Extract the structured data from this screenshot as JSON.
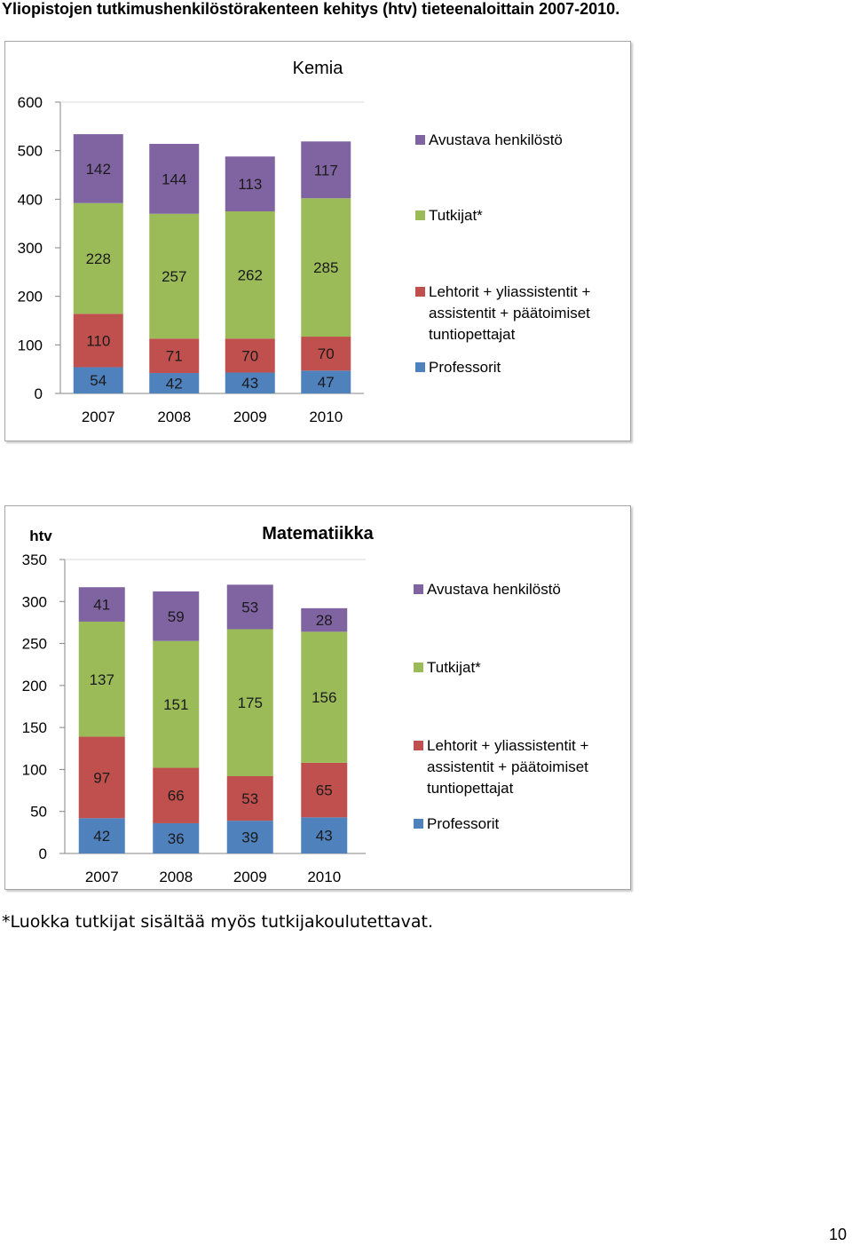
{
  "page": {
    "title": "Yliopistojen tutkimushenkilöstörakenteen kehitys (htv) tieteenaloittain 2007-2010.",
    "footnote": "*Luokka tutkijat sisältää myös tutkijakoulutettavat.",
    "page_number": "10"
  },
  "series_colors": {
    "Professorit": "#4f81bd",
    "Lehtorit + yliassistentit + assistentit + päätoimiset tuntiopettajat": "#c0504d",
    "Tutkijat*": "#9bbb59",
    "Avustava henkilöstö": "#8064a2"
  },
  "chart_data": [
    {
      "type": "bar",
      "stacked": true,
      "title": "Kemia",
      "ylabel": "",
      "xlabel": "",
      "ylim": [
        0,
        600
      ],
      "yticks": [
        0,
        100,
        200,
        300,
        400,
        500,
        600
      ],
      "categories": [
        "2007",
        "2008",
        "2009",
        "2010"
      ],
      "series": [
        {
          "name": "Professorit",
          "values": [
            54,
            42,
            43,
            47
          ]
        },
        {
          "name": "Lehtorit + yliassistentit + assistentit + päätoimiset tuntiopettajat",
          "values": [
            110,
            71,
            70,
            70
          ]
        },
        {
          "name": "Tutkijat*",
          "values": [
            228,
            257,
            262,
            285
          ]
        },
        {
          "name": "Avustava henkilöstö",
          "values": [
            142,
            144,
            113,
            117
          ]
        }
      ],
      "legend": [
        "Avustava henkilöstö",
        "Tutkijat*",
        "Lehtorit + yliassistentit + assistentit + päätoimiset tuntiopettajat",
        "Professorit"
      ],
      "legend_position": "right",
      "grid": false
    },
    {
      "type": "bar",
      "stacked": true,
      "title": "Matematiikka",
      "ylabel": "htv",
      "xlabel": "",
      "ylim": [
        0,
        350
      ],
      "yticks": [
        0,
        50,
        100,
        150,
        200,
        250,
        300,
        350
      ],
      "categories": [
        "2007",
        "2008",
        "2009",
        "2010"
      ],
      "series": [
        {
          "name": "Professorit",
          "values": [
            42,
            36,
            39,
            43
          ]
        },
        {
          "name": "Lehtorit + yliassistentit + assistentit + päätoimiset tuntiopettajat",
          "values": [
            97,
            66,
            53,
            65
          ]
        },
        {
          "name": "Tutkijat*",
          "values": [
            137,
            151,
            175,
            156
          ]
        },
        {
          "name": "Avustava henkilöstö",
          "values": [
            41,
            59,
            53,
            28
          ]
        }
      ],
      "legend": [
        "Avustava henkilöstö",
        "Tutkijat*",
        "Lehtorit + yliassistentit + assistentit + päätoimiset tuntiopettajat",
        "Professorit"
      ],
      "legend_position": "right",
      "grid": false
    }
  ]
}
